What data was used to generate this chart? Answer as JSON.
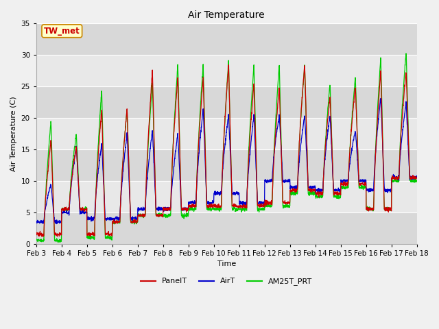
{
  "title": "Air Temperature",
  "xlabel": "Time",
  "ylabel": "Air Temperature (C)",
  "annotation_text": "TW_met",
  "annotation_bg": "#ffffcc",
  "annotation_fg": "#cc0000",
  "annotation_edge": "#cc8800",
  "ylim": [
    0,
    35
  ],
  "y_ticks": [
    0,
    5,
    10,
    15,
    20,
    25,
    30,
    35
  ],
  "x_ticks": [
    "Feb 3",
    "Feb 4",
    "Feb 5",
    "Feb 6",
    "Feb 7",
    "Feb 8",
    "Feb 9",
    "Feb 10",
    "Feb 11",
    "Feb 12",
    "Feb 13",
    "Feb 14",
    "Feb 15",
    "Feb 16",
    "Feb 17",
    "Feb 18"
  ],
  "band_dark": "#d8d8d8",
  "band_light": "#e8e8e8",
  "color_PanelT": "#cc0000",
  "color_AirT": "#0000cc",
  "color_AM25T_PRT": "#00cc00",
  "fig_bg": "#f0f0f0",
  "linewidth": 0.9,
  "title_fontsize": 10,
  "label_fontsize": 8,
  "tick_fontsize": 7.5,
  "legend_fontsize": 8
}
